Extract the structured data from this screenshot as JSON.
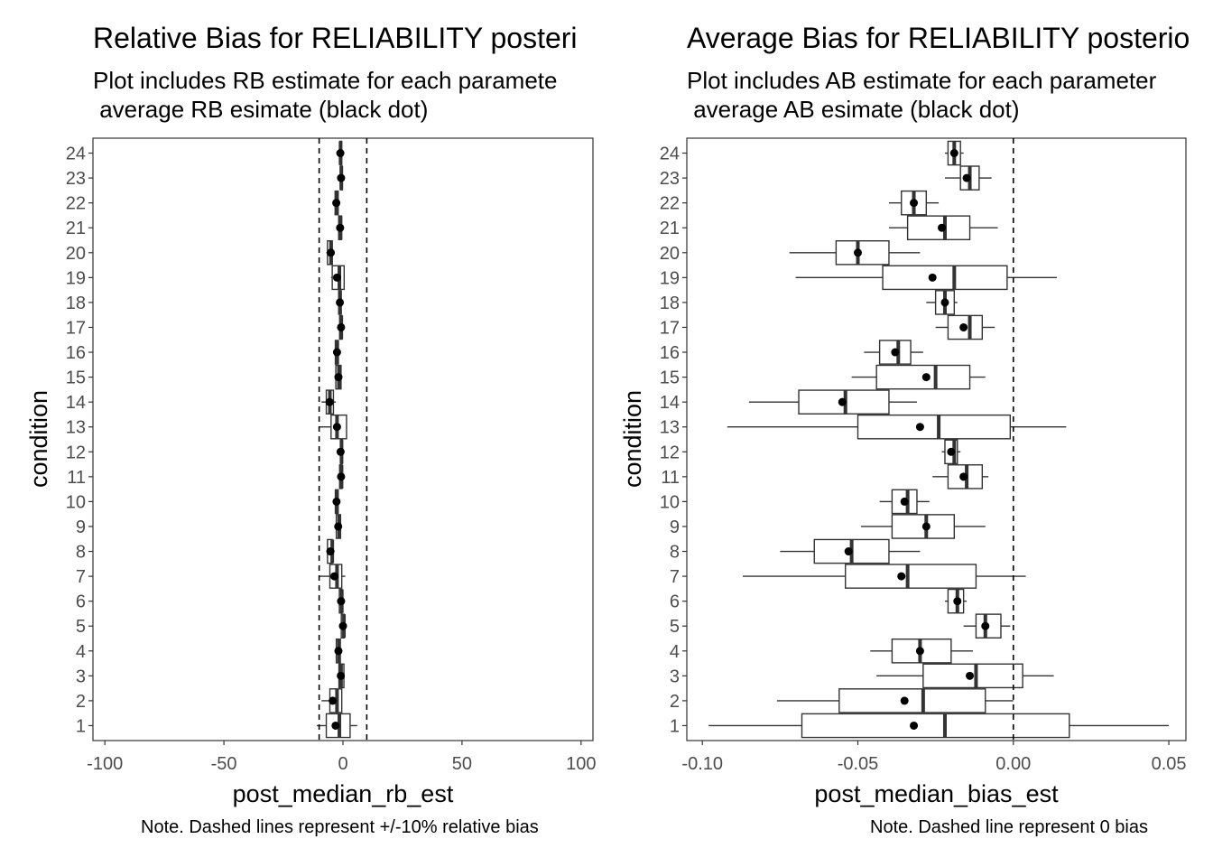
{
  "chart_data": [
    {
      "type": "boxplot",
      "title": "Relative Bias for RELIABILITY posteri",
      "subtitle_line1": "Plot includes RB estimate for each paramete",
      "subtitle_line2": " average RB esimate (black dot)",
      "xlabel": "post_median_rb_est",
      "ylabel": "condition",
      "caption": "Note. Dashed lines represent +/-10% relative bias",
      "xlim": [
        -105,
        105
      ],
      "xticks": [
        -100,
        -50,
        0,
        50,
        100
      ],
      "xtick_labels": [
        "-100",
        "-50",
        "0",
        "50",
        "100"
      ],
      "reference_lines": [
        -10,
        10
      ],
      "categories": [
        "1",
        "2",
        "3",
        "4",
        "5",
        "6",
        "7",
        "8",
        "9",
        "10",
        "11",
        "12",
        "13",
        "14",
        "15",
        "16",
        "17",
        "18",
        "19",
        "20",
        "21",
        "22",
        "23",
        "24"
      ],
      "boxes": [
        {
          "min": -11,
          "q1": -7,
          "median": -1.5,
          "q3": 3,
          "max": 6,
          "mean": -3.1
        },
        {
          "min": -9,
          "q1": -5.5,
          "median": -2.5,
          "q3": -0.5,
          "max": -0.5,
          "mean": -4.3
        },
        {
          "min": -2,
          "q1": -1.7,
          "median": -0.8,
          "q3": 0.4,
          "max": 0.6,
          "mean": -0.9
        },
        {
          "min": -3,
          "q1": -2.8,
          "median": -1.7,
          "q3": -1.1,
          "max": -0.8,
          "mean": -1.9
        },
        {
          "min": -0.8,
          "q1": -0.7,
          "median": 0.4,
          "q3": 0.5,
          "max": 0.6,
          "mean": 0.0
        },
        {
          "min": -1.5,
          "q1": -1.5,
          "median": -0.5,
          "q3": -0.4,
          "max": -0.3,
          "mean": -0.8
        },
        {
          "min": -10,
          "q1": -5.5,
          "median": -2.5,
          "q3": -0.5,
          "max": 1,
          "mean": -3.6
        },
        {
          "min": -7,
          "q1": -6.5,
          "median": -4.5,
          "q3": -4.5,
          "max": -3.5,
          "mean": -5.3
        },
        {
          "min": -3,
          "q1": -2.8,
          "median": -1.6,
          "q3": -1.0,
          "max": -0.8,
          "mean": -2.0
        },
        {
          "min": -3.5,
          "q1": -3.2,
          "median": -2.6,
          "q3": -2.0,
          "max": -1.5,
          "mean": -2.7
        },
        {
          "min": -1.5,
          "q1": -1.4,
          "median": -0.6,
          "q3": -0.4,
          "max": -0.2,
          "mean": -0.8
        },
        {
          "min": -1.2,
          "q1": -1.0,
          "median": -0.6,
          "q3": -0.5,
          "max": -0.2,
          "mean": -1.0
        },
        {
          "min": -10,
          "q1": -5,
          "median": -2.5,
          "q3": 1.5,
          "max": 1.7,
          "mean": -2.5
        },
        {
          "min": -9,
          "q1": -7,
          "median": -5.5,
          "q3": -4,
          "max": -3,
          "mean": -5.6
        },
        {
          "min": -3.5,
          "q1": -3.0,
          "median": -1.7,
          "q3": -0.8,
          "max": -0.5,
          "mean": -1.9
        },
        {
          "min": -3.5,
          "q1": -3.2,
          "median": -2.4,
          "q3": -2.0,
          "max": -1.5,
          "mean": -2.5
        },
        {
          "min": -1.5,
          "q1": -1.4,
          "median": -0.7,
          "q3": -0.4,
          "max": 0.0,
          "mean": -0.8
        },
        {
          "min": -2.0,
          "q1": -1.8,
          "median": -1.2,
          "q3": -0.8,
          "max": -0.5,
          "mean": -1.3
        },
        {
          "min": -5,
          "q1": -4.5,
          "median": -1.5,
          "q3": 0.5,
          "max": 0.7,
          "mean": -2.5
        },
        {
          "min": -7,
          "q1": -6.5,
          "median": -5,
          "q3": -4.5,
          "max": -3.5,
          "mean": -5.1
        },
        {
          "min": -2.0,
          "q1": -1.8,
          "median": -1.0,
          "q3": -0.6,
          "max": -0.5,
          "mean": -1.2
        },
        {
          "min": -3.5,
          "q1": -3.3,
          "median": -2.6,
          "q3": -2.0,
          "max": -1.5,
          "mean": -2.8
        },
        {
          "min": -1.2,
          "q1": -1.0,
          "median": -0.7,
          "q3": -0.4,
          "max": -0.2,
          "mean": -0.8
        },
        {
          "min": -1.5,
          "q1": -1.3,
          "median": -1.0,
          "q3": -0.6,
          "max": -0.3,
          "mean": -1.1
        }
      ]
    },
    {
      "type": "boxplot",
      "title": "Average Bias for RELIABILITY posterio",
      "subtitle_line1": "Plot includes AB estimate for each parameter",
      "subtitle_line2": " average AB esimate (black dot)",
      "xlabel": "post_median_bias_est",
      "ylabel": "condition",
      "caption": "Note. Dashed line represent 0 bias",
      "xlim": [
        -0.105,
        0.0555
      ],
      "xticks": [
        -0.1,
        -0.05,
        0.0,
        0.05
      ],
      "xtick_labels": [
        "-0.10",
        "-0.05",
        "0.00",
        "0.05"
      ],
      "reference_lines": [
        0
      ],
      "categories": [
        "1",
        "2",
        "3",
        "4",
        "5",
        "6",
        "7",
        "8",
        "9",
        "10",
        "11",
        "12",
        "13",
        "14",
        "15",
        "16",
        "17",
        "18",
        "19",
        "20",
        "21",
        "22",
        "23",
        "24"
      ],
      "boxes": [
        {
          "min": -0.098,
          "q1": -0.068,
          "median": -0.022,
          "q3": 0.018,
          "max": 0.05,
          "mean": -0.032
        },
        {
          "min": -0.076,
          "q1": -0.056,
          "median": -0.029,
          "q3": -0.009,
          "max": 0.0,
          "mean": -0.035
        },
        {
          "min": -0.044,
          "q1": -0.029,
          "median": -0.012,
          "q3": 0.003,
          "max": 0.013,
          "mean": -0.014
        },
        {
          "min": -0.046,
          "q1": -0.039,
          "median": -0.03,
          "q3": -0.02,
          "max": -0.013,
          "mean": -0.03
        },
        {
          "min": -0.016,
          "q1": -0.012,
          "median": -0.009,
          "q3": -0.004,
          "max": -0.001,
          "mean": -0.009
        },
        {
          "min": -0.022,
          "q1": -0.021,
          "median": -0.018,
          "q3": -0.016,
          "max": -0.015,
          "mean": -0.018
        },
        {
          "min": -0.087,
          "q1": -0.054,
          "median": -0.034,
          "q3": -0.012,
          "max": 0.004,
          "mean": -0.036
        },
        {
          "min": -0.075,
          "q1": -0.064,
          "median": -0.052,
          "q3": -0.04,
          "max": -0.03,
          "mean": -0.053
        },
        {
          "min": -0.049,
          "q1": -0.039,
          "median": -0.028,
          "q3": -0.019,
          "max": -0.009,
          "mean": -0.028
        },
        {
          "min": -0.043,
          "q1": -0.039,
          "median": -0.034,
          "q3": -0.031,
          "max": -0.027,
          "mean": -0.035
        },
        {
          "min": -0.026,
          "q1": -0.021,
          "median": -0.015,
          "q3": -0.01,
          "max": -0.008,
          "mean": -0.016
        },
        {
          "min": -0.023,
          "q1": -0.022,
          "median": -0.019,
          "q3": -0.018,
          "max": -0.017,
          "mean": -0.02
        },
        {
          "min": -0.092,
          "q1": -0.05,
          "median": -0.024,
          "q3": -0.001,
          "max": 0.017,
          "mean": -0.03
        },
        {
          "min": -0.085,
          "q1": -0.069,
          "median": -0.054,
          "q3": -0.04,
          "max": -0.031,
          "mean": -0.055
        },
        {
          "min": -0.052,
          "q1": -0.044,
          "median": -0.025,
          "q3": -0.014,
          "max": -0.009,
          "mean": -0.028
        },
        {
          "min": -0.048,
          "q1": -0.043,
          "median": -0.037,
          "q3": -0.033,
          "max": -0.029,
          "mean": -0.038
        },
        {
          "min": -0.025,
          "q1": -0.021,
          "median": -0.014,
          "q3": -0.01,
          "max": -0.006,
          "mean": -0.016
        },
        {
          "min": -0.028,
          "q1": -0.025,
          "median": -0.022,
          "q3": -0.019,
          "max": -0.018,
          "mean": -0.022
        },
        {
          "min": -0.07,
          "q1": -0.042,
          "median": -0.019,
          "q3": -0.002,
          "max": 0.014,
          "mean": -0.026
        },
        {
          "min": -0.072,
          "q1": -0.057,
          "median": -0.05,
          "q3": -0.04,
          "max": -0.03,
          "mean": -0.05
        },
        {
          "min": -0.04,
          "q1": -0.034,
          "median": -0.022,
          "q3": -0.014,
          "max": -0.005,
          "mean": -0.023
        },
        {
          "min": -0.04,
          "q1": -0.036,
          "median": -0.032,
          "q3": -0.028,
          "max": -0.024,
          "mean": -0.032
        },
        {
          "min": -0.022,
          "q1": -0.017,
          "median": -0.014,
          "q3": -0.011,
          "max": -0.007,
          "mean": -0.015
        },
        {
          "min": -0.022,
          "q1": -0.021,
          "median": -0.019,
          "q3": -0.017,
          "max": -0.016,
          "mean": -0.019
        }
      ]
    }
  ]
}
